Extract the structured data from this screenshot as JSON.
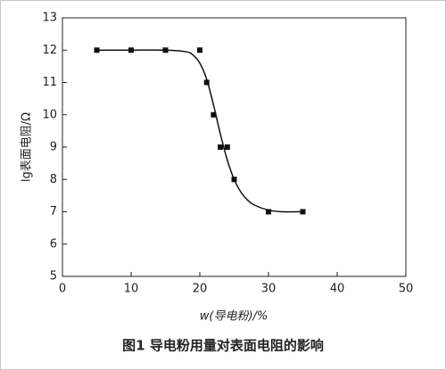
{
  "chart_data": {
    "type": "scatter",
    "caption": "图1  导电粉用量对表面电阻的影响",
    "x_label": "w(导电粉)/%",
    "y_label": "lg表面电阻/Ω",
    "xlim": [
      0,
      50
    ],
    "xticks": [
      0,
      10,
      20,
      30,
      40,
      50
    ],
    "ylim": [
      5,
      13
    ],
    "yticks": [
      5,
      6,
      7,
      8,
      9,
      10,
      11,
      12,
      13
    ],
    "series": [
      {
        "type": "scatter",
        "color": "#111111",
        "x": [
          5,
          10,
          15,
          20,
          21,
          22,
          23,
          24,
          25,
          30,
          35
        ],
        "values": [
          12,
          12,
          12,
          12,
          11,
          10,
          9,
          9,
          8,
          7,
          7
        ]
      },
      {
        "type": "line",
        "color": "#111111",
        "x": [
          5,
          10,
          15,
          18,
          19,
          20,
          21,
          22,
          23,
          24,
          25,
          26,
          27,
          28,
          30,
          32,
          35
        ],
        "values": [
          12,
          12,
          12,
          11.95,
          11.85,
          11.6,
          11.1,
          10.3,
          9.4,
          8.6,
          8.0,
          7.6,
          7.35,
          7.2,
          7.05,
          7.0,
          7.0
        ]
      }
    ]
  }
}
